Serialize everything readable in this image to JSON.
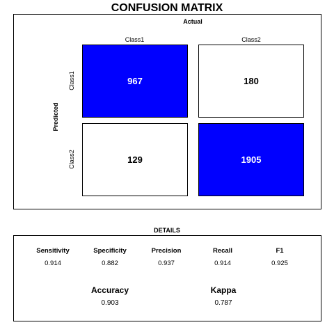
{
  "title": "CONFUSION MATRIX",
  "chart_data": {
    "type": "table",
    "title": "CONFUSION MATRIX",
    "column_axis_label": "Actual",
    "row_axis_label": "Predicted",
    "columns": [
      "Class1",
      "Class2"
    ],
    "rows": [
      "Class1",
      "Class2"
    ],
    "values": [
      [
        967,
        180
      ],
      [
        129,
        1905
      ]
    ],
    "highlight_color": "#0000ff"
  },
  "details": {
    "heading": "DETAILS",
    "metrics": [
      {
        "name": "Sensitivity",
        "value": "0.914"
      },
      {
        "name": "Specificity",
        "value": "0.882"
      },
      {
        "name": "Precision",
        "value": "0.937"
      },
      {
        "name": "Recall",
        "value": "0.914"
      },
      {
        "name": "F1",
        "value": "0.925"
      }
    ],
    "accuracy": {
      "name": "Accuracy",
      "value": "0.903"
    },
    "kappa": {
      "name": "Kappa",
      "value": "0.787"
    }
  }
}
